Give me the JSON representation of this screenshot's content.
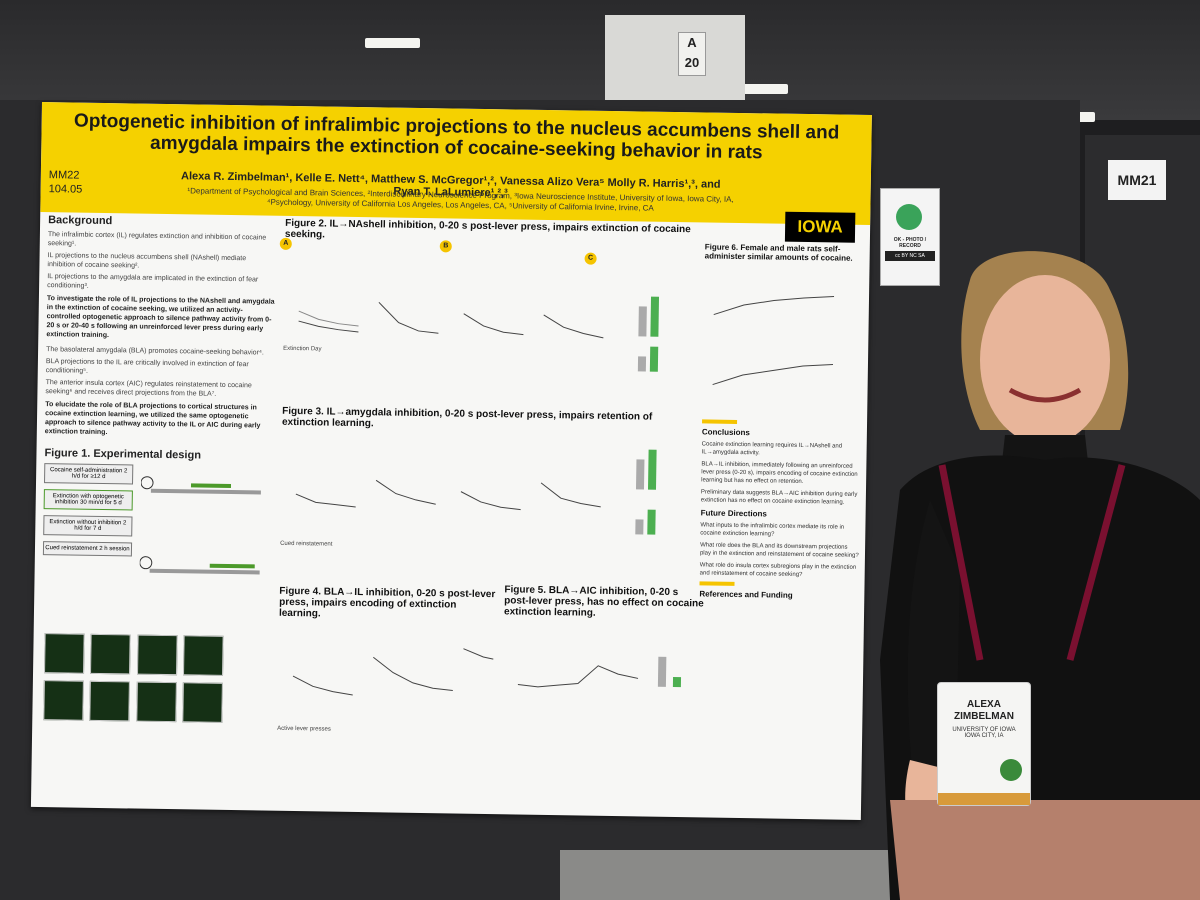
{
  "venue": {
    "pillar_sign": "A 20",
    "next_board_label": "MM21"
  },
  "poster": {
    "title": "Optogenetic inhibition of infralimbic projections to the nucleus accumbens shell and amygdala impairs the extinction of cocaine-seeking behavior in rats",
    "board_code": "MM22",
    "session_code": "104.05",
    "authors": "Alexa R. Zimbelman¹, Kelle E. Nett⁴, Matthew S. McGregor¹,², Vanessa Alizo Vera⁵ Molly R. Harris¹,³, and Ryan T. LaLumiere¹,²,³",
    "affiliations": "¹Department of Psychological and Brain Sciences, ²Interdisciplinary Neuroscience Program, ³Iowa Neuroscience Institute, University of Iowa, Iowa City, IA, ⁴Psychology, University of California Los Angeles, Los Angeles, CA, ⁵University of California Irvine, Irvine, CA",
    "logo": "IOWA",
    "background_heading": "Background",
    "background_bullets": [
      "The infralimbic cortex (IL) regulates extinction and inhibition of cocaine seeking¹.",
      "IL projections to the nucleus accumbens shell (NAshell) mediate inhibition of cocaine seeking².",
      "IL projections to the amygdala are implicated in the extinction of fear conditioning³."
    ],
    "aim_1": "To investigate the role of IL projections to the NAshell and amygdala in the extinction of cocaine seeking, we utilized an activity-controlled optogenetic approach to silence pathway activity from 0-20 s or 20-40 s following an unreinforced lever press during early extinction training.",
    "background_bullets_2": [
      "The basolateral amygdala (BLA) promotes cocaine-seeking behavior⁴.",
      "BLA projections to the IL are critically involved in extinction of fear conditioning⁵.",
      "The anterior insula cortex (AIC) regulates reinstatement to cocaine seeking⁶ and receives direct projections from the BLA⁷."
    ],
    "aim_2": "To elucidate the role of BLA projections to cortical structures in cocaine extinction learning, we utilized the same optogenetic approach to silence pathway activity to the IL or AIC during early extinction training.",
    "fig1_heading": "Figure 1. Experimental design",
    "flow": [
      "Cocaine self-administration 2 h/d for ≥12 d",
      "Extinction with optogenetic inhibition 30 min/d for 5 d",
      "Extinction without inhibition 2 h/d for 7 d",
      "Cued reinstatement 2 h session"
    ],
    "fig2_heading": "Figure 2. IL→NAshell inhibition, 0-20 s post-lever press, impairs extinction of cocaine seeking.",
    "fig3_heading": "Figure 3. IL→amygdala inhibition, 0-20 s post-lever press, impairs retention of extinction learning.",
    "fig4_heading": "Figure 4. BLA→IL inhibition, 0-20 s post-lever press, impairs encoding of extinction learning.",
    "fig5_heading": "Figure 5. BLA→AIC inhibition, 0-20 s post-lever press, has no effect on cocaine extinction learning.",
    "fig6_heading": "Figure 6. Female and male rats self-administer similar amounts of cocaine.",
    "conclusions_heading": "Conclusions",
    "conclusions": [
      "Cocaine extinction learning requires IL→NAshell and IL→amygdala activity.",
      "BLA→IL inhibition, immediately following an unreinforced lever press (0-20 s), impairs encoding of cocaine extinction learning but has no effect on retention.",
      "Preliminary data suggests BLA→AIC inhibition during early extinction has no effect on cocaine extinction learning."
    ],
    "future_heading": "Future Directions",
    "future": [
      "What inputs to the infralimbic cortex mediate its role in cocaine extinction learning?",
      "What role does the BLA and its downstream projections play in the extinction and reinstatement of cocaine seeking?",
      "What role do insula cortex subregions play in the extinction and reinstatement of cocaine seeking?"
    ],
    "refs_heading": "References and Funding",
    "axis_labels": {
      "active_lever": "Active lever presses",
      "extinction_day": "Extinction Day",
      "cued_reinstatement": "Cued reinstatement"
    },
    "panel_letters": [
      "A",
      "B",
      "C"
    ]
  },
  "photo_sign": {
    "text": "OK - PHOTO / RECORD",
    "license": "cc BY NC SA"
  },
  "name_badge": {
    "first": "ALEXA",
    "last": "ZIMBELMAN",
    "org": "UNIVERSITY OF IOWA",
    "city": "IOWA CITY, IA"
  },
  "colors": {
    "banner": "#f5d100",
    "iowa_gold": "#f5c400",
    "shirt": "#111111"
  }
}
